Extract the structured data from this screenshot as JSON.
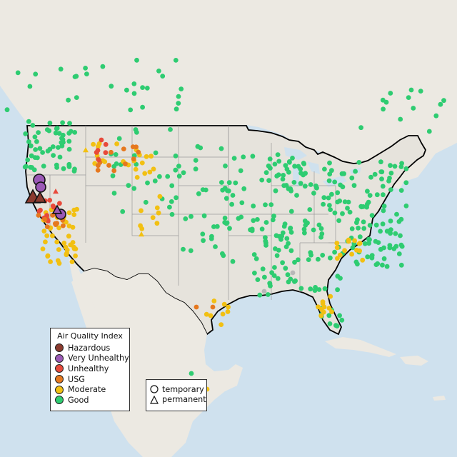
{
  "legend": {
    "title": "Air Quality Index",
    "categories": [
      {
        "label": "Hazardous",
        "color": "#8b3a2e"
      },
      {
        "label": "Very Unhealthy",
        "color": "#9b59b6"
      },
      {
        "label": "Unhealthy",
        "color": "#e8493a"
      },
      {
        "label": "USG",
        "color": "#e6781e"
      },
      {
        "label": "Moderate",
        "color": "#f2c012"
      },
      {
        "label": "Good",
        "color": "#2ecc71"
      }
    ],
    "types": [
      {
        "label": "temporary",
        "shape": "circle"
      },
      {
        "label": "permanent",
        "shape": "triangle"
      }
    ]
  },
  "colors": {
    "ocean": "#cfe1ee",
    "land": "#e9e6df",
    "grey_station": "#b8b8b8"
  }
}
